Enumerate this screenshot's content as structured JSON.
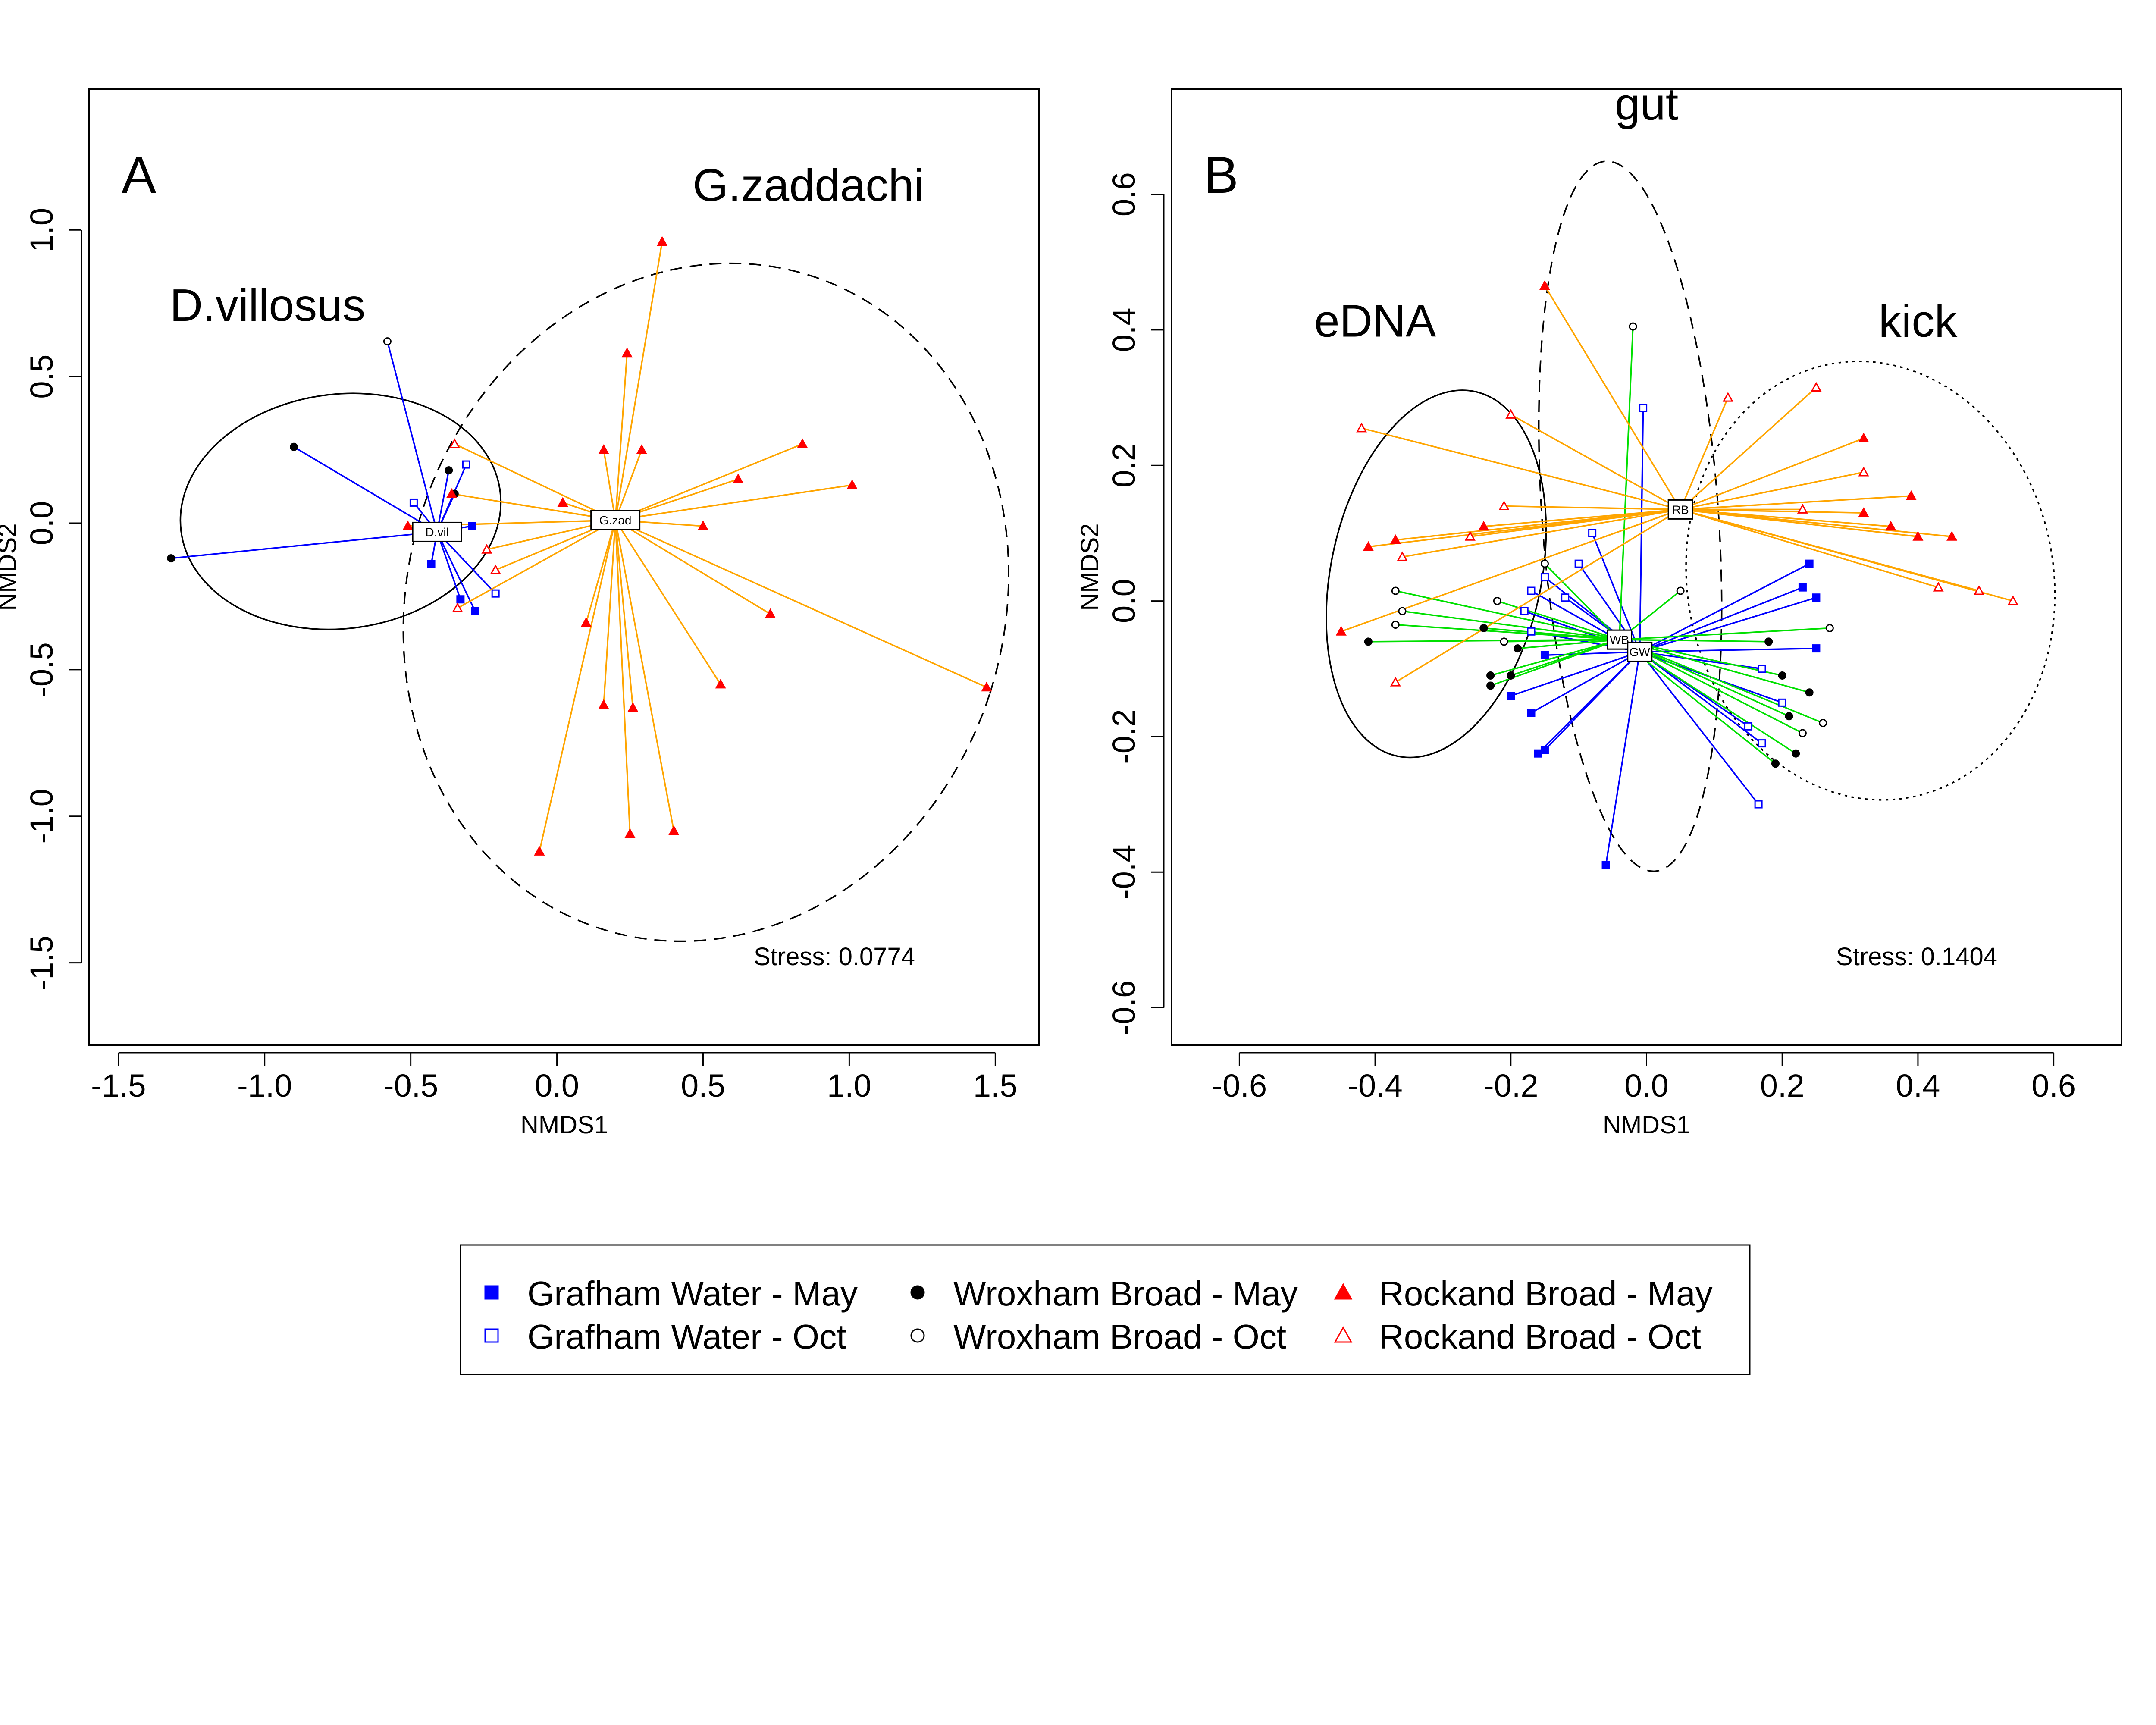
{
  "legend": {
    "items": [
      {
        "label": "Grafham Water - May",
        "color": "#0000ff",
        "shape": "square",
        "filled": true
      },
      {
        "label": "Wroxham Broad - May",
        "color": "#000000",
        "shape": "circle",
        "filled": true
      },
      {
        "label": "Rockand Broad - May",
        "color": "#ff0000",
        "shape": "triangle",
        "filled": true
      },
      {
        "label": "Grafham Water - Oct",
        "color": "#0000ff",
        "shape": "square",
        "filled": false
      },
      {
        "label": "Wroxham Broad - Oct",
        "color": "#000000",
        "shape": "circle",
        "filled": false
      },
      {
        "label": "Rockand Broad - Oct",
        "color": "#ff0000",
        "shape": "triangle",
        "filled": false
      }
    ]
  },
  "colors": {
    "grafham": "#0000ff",
    "wroxham": "#000000",
    "rockand": "#ff0000",
    "spider_blue": "#0000ff",
    "spider_green": "#00e000",
    "spider_orange": "#ffa500"
  },
  "chart_data": [
    {
      "type": "scatter",
      "panel": "A",
      "xlabel": "NMDS1",
      "ylabel": "NMDS2",
      "xlim": [
        -1.6,
        1.65
      ],
      "ylim": [
        -1.78,
        1.48
      ],
      "xticks": [
        -1.5,
        -1.0,
        -0.5,
        0.0,
        0.5,
        1.0,
        1.5
      ],
      "xtick_labels": [
        "-1.5",
        "-1.0",
        "-0.5",
        "0.0",
        "0.5",
        "1.0",
        "1.5"
      ],
      "yticks": [
        -1.5,
        -1.0,
        -0.5,
        0.0,
        0.5,
        1.0
      ],
      "ytick_labels": [
        "-1.5",
        "-1.0",
        "-0.5",
        "0.0",
        "0.5",
        "1.0"
      ],
      "stress": "Stress: 0.0774",
      "group_labels": [
        {
          "text": "D.villosus",
          "x": -0.99,
          "y": 0.69
        },
        {
          "text": "G.zaddachi",
          "x": 0.86,
          "y": 1.1
        }
      ],
      "centroids": [
        {
          "label": "D.vil",
          "x": -0.41,
          "y": -0.03,
          "color": "#0000ff"
        },
        {
          "label": "G.zad",
          "x": 0.2,
          "y": 0.01,
          "color": "#ffa500"
        }
      ],
      "ellipses": [
        {
          "cx": -0.74,
          "cy": 0.04,
          "rx": 0.55,
          "ry": 0.4,
          "angle": 7,
          "dash": "solid"
        },
        {
          "cx": 0.51,
          "cy": -0.27,
          "rx": 1.02,
          "ry": 1.17,
          "angle": -18,
          "dash": "dashed"
        }
      ],
      "series": [
        {
          "name": "Grafham Water - May",
          "centroid": 0,
          "shape": "square",
          "filled": true,
          "color": "#0000ff",
          "points": [
            [
              -0.43,
              -0.14
            ],
            [
              -0.33,
              -0.26
            ],
            [
              -0.28,
              -0.3
            ],
            [
              -0.29,
              -0.01
            ]
          ]
        },
        {
          "name": "Grafham Water - Oct",
          "centroid": 0,
          "shape": "square",
          "filled": false,
          "color": "#0000ff",
          "points": [
            [
              -0.49,
              0.07
            ],
            [
              -0.31,
              0.2
            ],
            [
              -0.21,
              -0.24
            ]
          ]
        },
        {
          "name": "Wroxham Broad - May",
          "centroid": 0,
          "shape": "circle",
          "filled": true,
          "color": "#000000",
          "points": [
            [
              -0.9,
              0.26
            ],
            [
              -1.32,
              -0.12
            ],
            [
              -0.37,
              0.18
            ],
            [
              -0.35,
              0.1
            ]
          ]
        },
        {
          "name": "Wroxham Broad - Oct",
          "centroid": 0,
          "shape": "circle",
          "filled": false,
          "color": "#000000",
          "points": [
            [
              -0.58,
              0.62
            ]
          ]
        },
        {
          "name": "Rockand Broad - May",
          "centroid": 1,
          "shape": "triangle",
          "filled": true,
          "color": "#ff0000",
          "points": [
            [
              0.36,
              0.96
            ],
            [
              0.24,
              0.58
            ],
            [
              0.16,
              0.25
            ],
            [
              0.29,
              0.25
            ],
            [
              0.84,
              0.27
            ],
            [
              0.62,
              0.15
            ],
            [
              1.01,
              0.13
            ],
            [
              0.5,
              -0.01
            ],
            [
              0.02,
              0.07
            ],
            [
              -0.51,
              -0.01
            ],
            [
              -0.36,
              0.1
            ],
            [
              0.1,
              -0.34
            ],
            [
              0.73,
              -0.31
            ],
            [
              0.56,
              -0.55
            ],
            [
              0.16,
              -0.62
            ],
            [
              0.26,
              -0.63
            ],
            [
              -0.06,
              -1.12
            ],
            [
              0.25,
              -1.06
            ],
            [
              0.4,
              -1.05
            ],
            [
              1.47,
              -0.56
            ]
          ]
        },
        {
          "name": "Rockand Broad - Oct",
          "centroid": 1,
          "shape": "triangle",
          "filled": false,
          "color": "#ff0000",
          "points": [
            [
              -0.35,
              0.27
            ],
            [
              -0.24,
              -0.09
            ],
            [
              -0.21,
              -0.16
            ],
            [
              -0.34,
              -0.29
            ]
          ]
        }
      ]
    },
    {
      "type": "scatter",
      "panel": "B",
      "xlabel": "NMDS1",
      "ylabel": "NMDS2",
      "xlim": [
        -0.7,
        0.7
      ],
      "ylim": [
        -0.655,
        0.755
      ],
      "xticks": [
        -0.6,
        -0.4,
        -0.2,
        0.0,
        0.2,
        0.4,
        0.6
      ],
      "xtick_labels": [
        "-0.6",
        "-0.4",
        "-0.2",
        "0.0",
        "0.2",
        "0.4",
        "0.6"
      ],
      "yticks": [
        -0.6,
        -0.4,
        -0.2,
        0.0,
        0.2,
        0.4,
        0.6
      ],
      "ytick_labels": [
        "-0.6",
        "-0.4",
        "-0.2",
        "0.0",
        "0.2",
        "0.4",
        "0.6"
      ],
      "stress": "Stress: 0.1404",
      "group_labels": [
        {
          "text": "gut",
          "x": 0.0,
          "y": 0.71
        },
        {
          "text": "eDNA",
          "x": -0.4,
          "y": 0.39
        },
        {
          "text": "kick",
          "x": 0.4,
          "y": 0.39
        }
      ],
      "centroids": [
        {
          "label": "RB",
          "x": 0.05,
          "y": 0.135,
          "color": "#ffa500"
        },
        {
          "label": "WB",
          "x": -0.04,
          "y": -0.057,
          "color": "#00e000"
        },
        {
          "label": "GW",
          "x": -0.01,
          "y": -0.075,
          "color": "#0000ff"
        }
      ],
      "ellipses": [
        {
          "cx": -0.024,
          "cy": 0.125,
          "rx": 0.13,
          "ry": 0.525,
          "angle": 4,
          "dash": "dashed"
        },
        {
          "cx": -0.31,
          "cy": 0.04,
          "rx": 0.155,
          "ry": 0.275,
          "angle": -12,
          "dash": "solid"
        },
        {
          "cx": 0.33,
          "cy": 0.03,
          "rx": 0.27,
          "ry": 0.325,
          "angle": 10,
          "dash": "dotted"
        }
      ],
      "series": [
        {
          "name": "Grafham Water - May",
          "centroid": 2,
          "shape": "square",
          "filled": true,
          "color": "#0000ff",
          "points": [
            [
              0.24,
              0.055
            ],
            [
              0.23,
              0.02
            ],
            [
              0.25,
              0.005
            ],
            [
              0.25,
              -0.07
            ],
            [
              -0.15,
              -0.08
            ],
            [
              -0.2,
              -0.14
            ],
            [
              -0.17,
              -0.165
            ],
            [
              -0.15,
              -0.22
            ],
            [
              -0.16,
              -0.225
            ],
            [
              -0.06,
              -0.39
            ]
          ]
        },
        {
          "name": "Grafham Water - Oct",
          "centroid": 2,
          "shape": "square",
          "filled": false,
          "color": "#0000ff",
          "points": [
            [
              -0.005,
              0.285
            ],
            [
              -0.08,
              0.1
            ],
            [
              -0.1,
              0.055
            ],
            [
              -0.15,
              0.035
            ],
            [
              -0.17,
              0.015
            ],
            [
              -0.12,
              0.005
            ],
            [
              -0.18,
              -0.015
            ],
            [
              -0.17,
              -0.045
            ],
            [
              0.17,
              -0.1
            ],
            [
              0.2,
              -0.15
            ],
            [
              0.15,
              -0.185
            ],
            [
              0.17,
              -0.21
            ],
            [
              0.165,
              -0.3
            ]
          ]
        },
        {
          "name": "Wroxham Broad - May",
          "centroid": 1,
          "shape": "circle",
          "filled": true,
          "color": "#000000",
          "points": [
            [
              -0.24,
              -0.04
            ],
            [
              -0.41,
              -0.06
            ],
            [
              -0.23,
              -0.11
            ],
            [
              -0.19,
              -0.07
            ],
            [
              -0.23,
              -0.125
            ],
            [
              -0.2,
              -0.11
            ],
            [
              0.18,
              -0.06
            ],
            [
              0.2,
              -0.11
            ],
            [
              0.24,
              -0.135
            ],
            [
              0.21,
              -0.17
            ],
            [
              0.22,
              -0.225
            ],
            [
              0.19,
              -0.24
            ]
          ]
        },
        {
          "name": "Wroxham Broad - Oct",
          "centroid": 1,
          "shape": "circle",
          "filled": false,
          "color": "#000000",
          "points": [
            [
              -0.02,
              0.405
            ],
            [
              -0.15,
              0.055
            ],
            [
              -0.37,
              0.015
            ],
            [
              -0.36,
              -0.015
            ],
            [
              -0.37,
              -0.035
            ],
            [
              -0.22,
              0.0
            ],
            [
              -0.21,
              -0.06
            ],
            [
              0.05,
              0.015
            ],
            [
              0.27,
              -0.04
            ],
            [
              0.26,
              -0.18
            ],
            [
              0.23,
              -0.195
            ]
          ]
        },
        {
          "name": "Rockand Broad - May",
          "centroid": 0,
          "shape": "triangle",
          "filled": true,
          "color": "#ff0000",
          "points": [
            [
              -0.15,
              0.465
            ],
            [
              0.32,
              0.24
            ],
            [
              0.39,
              0.155
            ],
            [
              0.32,
              0.13
            ],
            [
              0.36,
              0.11
            ],
            [
              0.4,
              0.095
            ],
            [
              0.45,
              0.095
            ],
            [
              -0.24,
              0.11
            ],
            [
              -0.37,
              0.09
            ],
            [
              -0.41,
              0.08
            ],
            [
              -0.45,
              -0.045
            ]
          ]
        },
        {
          "name": "Rockand Broad - Oct",
          "centroid": 0,
          "shape": "triangle",
          "filled": false,
          "color": "#ff0000",
          "points": [
            [
              -0.42,
              0.255
            ],
            [
              -0.2,
              0.275
            ],
            [
              0.12,
              0.3
            ],
            [
              0.25,
              0.315
            ],
            [
              0.32,
              0.19
            ],
            [
              0.23,
              0.135
            ],
            [
              -0.21,
              0.14
            ],
            [
              -0.26,
              0.095
            ],
            [
              -0.36,
              0.065
            ],
            [
              0.43,
              0.02
            ],
            [
              0.49,
              0.015
            ],
            [
              0.54,
              0.0
            ],
            [
              -0.37,
              -0.12
            ]
          ]
        }
      ]
    }
  ]
}
